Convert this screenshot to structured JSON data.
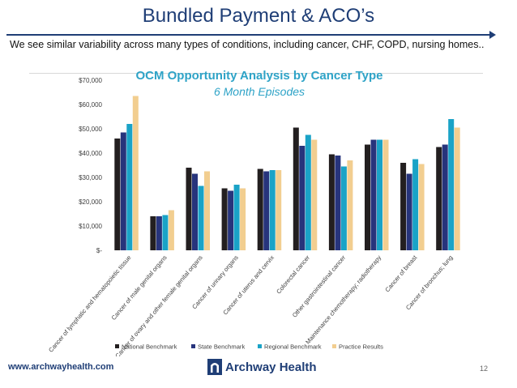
{
  "slide": {
    "title": "Bundled Payment & ACO’s",
    "subtitle": "We see similar variability across many types of conditions, including cancer, CHF, COPD, nursing homes..",
    "footer_url": "www.archwayhealth.com",
    "logo_text": "Archway Health",
    "page_number": "12"
  },
  "colors": {
    "title": "#1f3e76",
    "chart_title": "#2ea3c7",
    "series": [
      "#231f20",
      "#27347c",
      "#1aa3c7",
      "#f2ce90"
    ]
  },
  "chart_data": {
    "type": "bar",
    "title": "OCM Opportunity Analysis by Cancer Type",
    "subtitle": "6 Month Episodes",
    "categories": [
      "Cancer of lymphatic and hematopoietic tissue",
      "Cancer of male genital organs",
      "Cancer of ovary and other female genital organs",
      "Cancer of urinary organs",
      "Cancer of uterus and cervix",
      "Colorectal cancer",
      "Other gastrointestinal cancer",
      "Maintenance chemotherapy; radiotherapy",
      "Cancer of breast",
      "Cancer of bronchus; lung"
    ],
    "series": [
      {
        "name": "National Benchmark",
        "values": [
          46000,
          14000,
          34000,
          25500,
          33500,
          50500,
          39500,
          43500,
          36000,
          42500
        ]
      },
      {
        "name": "State Benchmark",
        "values": [
          48500,
          14000,
          31500,
          24500,
          32500,
          43000,
          39000,
          45500,
          31500,
          43500
        ]
      },
      {
        "name": "Regional Benchmark",
        "values": [
          52000,
          14500,
          26500,
          27000,
          33000,
          47500,
          34500,
          45500,
          37500,
          54000
        ]
      },
      {
        "name": "Practice Results",
        "values": [
          63500,
          16500,
          32500,
          25500,
          33000,
          45500,
          37000,
          45500,
          35500,
          50500
        ]
      }
    ],
    "ylim": [
      0,
      70000
    ],
    "yticks": [
      "$-",
      "$10,000",
      "$20,000",
      "$30,000",
      "$40,000",
      "$50,000",
      "$60,000",
      "$70,000"
    ],
    "grid": false,
    "legend": "bottom"
  }
}
